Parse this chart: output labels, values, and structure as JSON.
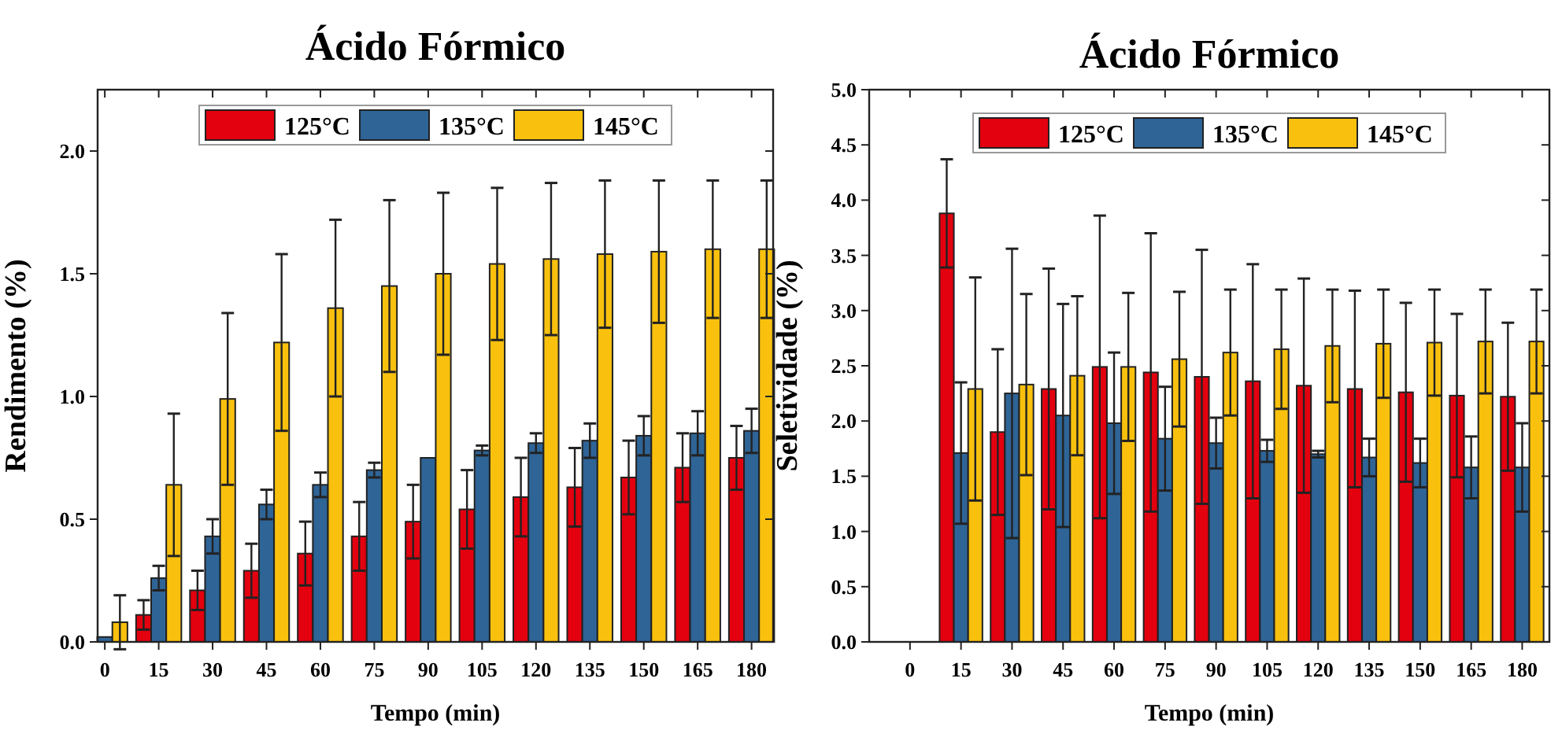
{
  "chart_data": [
    {
      "type": "bar",
      "title": "Ácido Fórmico",
      "xlabel": "Tempo (min)",
      "ylabel": "Rendimento (%)",
      "x": [
        0,
        15,
        30,
        45,
        60,
        75,
        90,
        105,
        120,
        135,
        150,
        165,
        180
      ],
      "xlim": [
        -2,
        186
      ],
      "xticks": [
        0,
        15,
        30,
        45,
        60,
        75,
        90,
        105,
        120,
        135,
        150,
        165,
        180
      ],
      "ylim": [
        0,
        2.25
      ],
      "yticks": [
        {
          "value": 0,
          "label": "0.0"
        },
        {
          "value": 0.5,
          "label": "0.5"
        },
        {
          "value": 1,
          "label": "1.0"
        },
        {
          "value": 1.5,
          "label": "1.5"
        },
        {
          "value": 2,
          "label": "2.0"
        }
      ],
      "legend": "top",
      "grid": false,
      "series": [
        {
          "name": "125°C",
          "color": "#e3000f",
          "values": [
            null,
            0.11,
            0.21,
            0.29,
            0.36,
            0.43,
            0.49,
            0.54,
            0.59,
            0.63,
            0.67,
            0.71,
            0.75
          ],
          "errors": [
            null,
            0.06,
            0.08,
            0.11,
            0.13,
            0.14,
            0.15,
            0.16,
            0.16,
            0.16,
            0.15,
            0.14,
            0.13
          ]
        },
        {
          "name": "135°C",
          "color": "#2f6496",
          "values": [
            0.02,
            0.26,
            0.43,
            0.56,
            0.64,
            0.7,
            0.75,
            0.78,
            0.81,
            0.82,
            0.84,
            0.85,
            0.86
          ],
          "errors": [
            null,
            0.05,
            0.07,
            0.06,
            0.05,
            0.03,
            null,
            0.02,
            0.04,
            0.07,
            0.08,
            0.09,
            0.09
          ]
        },
        {
          "name": "145°C",
          "color": "#f9c10e",
          "values": [
            0.08,
            0.64,
            0.99,
            1.22,
            1.36,
            1.45,
            1.5,
            1.54,
            1.56,
            1.58,
            1.59,
            1.6,
            1.6
          ],
          "errors": [
            0.11,
            0.29,
            0.35,
            0.36,
            0.36,
            0.35,
            0.33,
            0.31,
            0.31,
            0.3,
            0.29,
            0.28,
            0.28
          ]
        }
      ]
    },
    {
      "type": "bar",
      "title": "Ácido Fórmico",
      "xlabel": "Tempo (min)",
      "ylabel": "Seletividade (%)",
      "x": [
        15,
        30,
        45,
        60,
        75,
        90,
        105,
        120,
        135,
        150,
        165,
        180
      ],
      "xlim": [
        -12,
        188
      ],
      "xticks": [
        0,
        15,
        30,
        45,
        60,
        75,
        90,
        105,
        120,
        135,
        150,
        165,
        180
      ],
      "ylim": [
        0,
        5
      ],
      "yticks": [
        {
          "value": 0,
          "label": "0.0"
        },
        {
          "value": 0.5,
          "label": "0.5"
        },
        {
          "value": 1,
          "label": "1.0"
        },
        {
          "value": 1.5,
          "label": "1.5"
        },
        {
          "value": 2,
          "label": "2.0"
        },
        {
          "value": 2.5,
          "label": "2.5"
        },
        {
          "value": 3,
          "label": "3.0"
        },
        {
          "value": 3.5,
          "label": "3.5"
        },
        {
          "value": 4,
          "label": "4.0"
        },
        {
          "value": 4.5,
          "label": "4.5"
        },
        {
          "value": 5,
          "label": "5.0"
        }
      ],
      "legend": "top",
      "grid": false,
      "series": [
        {
          "name": "125°C",
          "color": "#e3000f",
          "values": [
            3.88,
            1.9,
            2.29,
            2.49,
            2.44,
            2.4,
            2.36,
            2.32,
            2.29,
            2.26,
            2.23,
            2.22
          ],
          "errors": [
            0.49,
            0.75,
            1.09,
            1.37,
            1.26,
            1.15,
            1.06,
            0.97,
            0.89,
            0.81,
            0.74,
            0.67
          ]
        },
        {
          "name": "135°C",
          "color": "#2f6496",
          "values": [
            1.71,
            2.25,
            2.05,
            1.98,
            1.84,
            1.8,
            1.73,
            1.7,
            1.67,
            1.62,
            1.58,
            1.58
          ],
          "errors": [
            0.64,
            1.31,
            1.01,
            0.64,
            0.47,
            0.23,
            0.1,
            0.03,
            0.17,
            0.22,
            0.28,
            0.4
          ]
        },
        {
          "name": "145°C",
          "color": "#f9c10e",
          "values": [
            2.29,
            2.33,
            2.41,
            2.49,
            2.56,
            2.62,
            2.65,
            2.68,
            2.7,
            2.71,
            2.72,
            2.72
          ],
          "errors": [
            1.01,
            0.82,
            0.72,
            0.67,
            0.61,
            0.57,
            0.54,
            0.51,
            0.49,
            0.48,
            0.47,
            0.47
          ]
        }
      ]
    }
  ]
}
